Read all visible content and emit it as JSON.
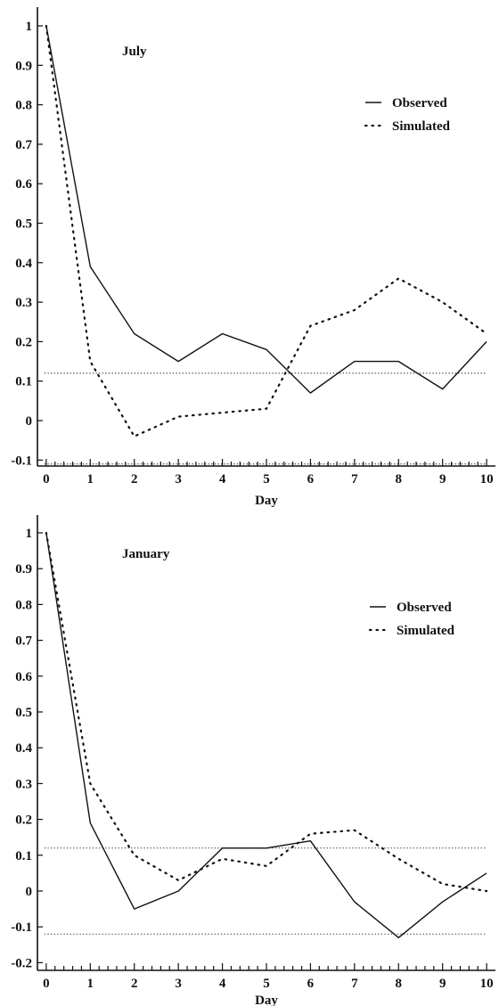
{
  "chart_data": [
    {
      "type": "line",
      "title": "July",
      "xlabel": "Day",
      "ylabel": "",
      "x": [
        0,
        1,
        2,
        3,
        4,
        5,
        6,
        7,
        8,
        9,
        10
      ],
      "xlim": [
        -0.2,
        10.2
      ],
      "ylim": [
        -0.12,
        1.03
      ],
      "xticks": [
        "0",
        "1",
        "2",
        "3",
        "4",
        "5",
        "6",
        "7",
        "8",
        "9",
        "10"
      ],
      "yticks": [
        {
          "v": 1,
          "label": "1"
        },
        {
          "v": 0.9,
          "label": "0.9"
        },
        {
          "v": 0.8,
          "label": "0.8"
        },
        {
          "v": 0.7,
          "label": "0.7"
        },
        {
          "v": 0.6,
          "label": "0.6"
        },
        {
          "v": 0.5,
          "label": "0.5"
        },
        {
          "v": 0.4,
          "label": "0.4"
        },
        {
          "v": 0.3,
          "label": "0.3"
        },
        {
          "v": 0.2,
          "label": "0.2"
        },
        {
          "v": 0.1,
          "label": "0.1"
        },
        {
          "v": 0,
          "label": "0"
        },
        {
          "v": -0.1,
          "label": "-0.1"
        }
      ],
      "series": [
        {
          "name": "Observed",
          "style": "solid",
          "values": [
            1.0,
            0.39,
            0.22,
            0.15,
            0.22,
            0.18,
            0.07,
            0.15,
            0.15,
            0.08,
            0.2
          ]
        },
        {
          "name": "Simulated",
          "style": "dotted",
          "values": [
            1.0,
            0.15,
            -0.04,
            0.01,
            0.02,
            0.03,
            0.24,
            0.28,
            0.36,
            0.3,
            0.22
          ]
        }
      ],
      "reference_lines": [
        0.12,
        -0.11
      ],
      "grid": false,
      "legend": "top-right"
    },
    {
      "type": "line",
      "title": "January",
      "xlabel": "Day",
      "ylabel": "",
      "x": [
        0,
        1,
        2,
        3,
        4,
        5,
        6,
        7,
        8,
        9,
        10
      ],
      "xlim": [
        -0.2,
        10.2
      ],
      "ylim": [
        -0.22,
        1.03
      ],
      "xticks": [
        "0",
        "1",
        "2",
        "3",
        "4",
        "5",
        "6",
        "7",
        "8",
        "9",
        "10"
      ],
      "yticks": [
        {
          "v": 1,
          "label": "1"
        },
        {
          "v": 0.9,
          "label": "0.9"
        },
        {
          "v": 0.8,
          "label": "0.8"
        },
        {
          "v": 0.7,
          "label": "0.7"
        },
        {
          "v": 0.6,
          "label": "0.6"
        },
        {
          "v": 0.5,
          "label": "0.5"
        },
        {
          "v": 0.4,
          "label": "0.4"
        },
        {
          "v": 0.3,
          "label": "0.3"
        },
        {
          "v": 0.2,
          "label": "0.2"
        },
        {
          "v": 0.1,
          "label": "0.1"
        },
        {
          "v": 0,
          "label": "0"
        },
        {
          "v": -0.1,
          "label": "-0.1"
        },
        {
          "v": -0.2,
          "label": "-0.2"
        }
      ],
      "series": [
        {
          "name": "Observed",
          "style": "solid",
          "values": [
            1.0,
            0.19,
            -0.05,
            0.0,
            0.12,
            0.12,
            0.14,
            -0.03,
            -0.13,
            -0.03,
            0.05
          ]
        },
        {
          "name": "Simulated",
          "style": "dotted",
          "values": [
            1.0,
            0.3,
            0.1,
            0.03,
            0.09,
            0.07,
            0.16,
            0.17,
            0.09,
            0.02,
            0.0
          ]
        }
      ],
      "reference_lines": [
        0.12,
        -0.12
      ],
      "grid": false,
      "legend": "top-right"
    }
  ]
}
